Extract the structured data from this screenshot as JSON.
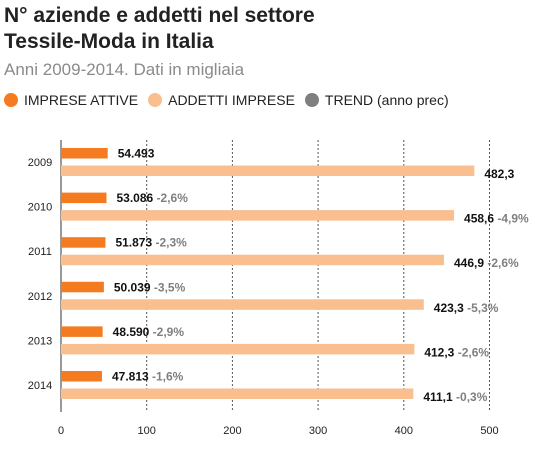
{
  "header": {
    "title_line1": "N° aziende e addetti nel settore",
    "title_line2": "Tessile-Moda in Italia",
    "subtitle": "Anni 2009-2014. Dati in migliaia"
  },
  "legend": {
    "items": [
      {
        "label": "IMPRESE ATTIVE",
        "color": "#f47b20"
      },
      {
        "label": "ADDETTI  IMPRESE",
        "color": "#f9bf8f"
      },
      {
        "label": "TREND (anno prec)",
        "color": "#7f7f7f"
      }
    ]
  },
  "chart_data": {
    "type": "bar",
    "orientation": "horizontal",
    "categories": [
      "2009",
      "2010",
      "2011",
      "2012",
      "2013",
      "2014"
    ],
    "series": [
      {
        "name": "IMPRESE ATTIVE",
        "color": "#f47b20",
        "values": [
          54.493,
          53.086,
          51.873,
          50.039,
          48.59,
          47.813
        ],
        "labels": [
          "54.493",
          "53.086",
          "51.873",
          "50.039",
          "48.590",
          "47.813"
        ],
        "trend": [
          "",
          "-2,6%",
          "-2,3%",
          "-3,5%",
          "-2,9%",
          "-1,6%"
        ]
      },
      {
        "name": "ADDETTI  IMPRESE",
        "color": "#f9bf8f",
        "values": [
          482.3,
          458.6,
          446.9,
          423.3,
          412.3,
          411.1
        ],
        "labels": [
          "482,3",
          "458,6",
          "446,9",
          "423,3",
          "412,3",
          "411,1"
        ],
        "trend": [
          "",
          "-4,9%",
          "-2,6%",
          "-5,3%",
          "-2,6%",
          "-0,3%"
        ]
      }
    ],
    "trend_color": "#7f7f7f",
    "x_ticks": [
      0,
      100,
      200,
      300,
      400,
      500
    ],
    "xlim": [
      0,
      500
    ],
    "grid": "vertical dotted"
  }
}
